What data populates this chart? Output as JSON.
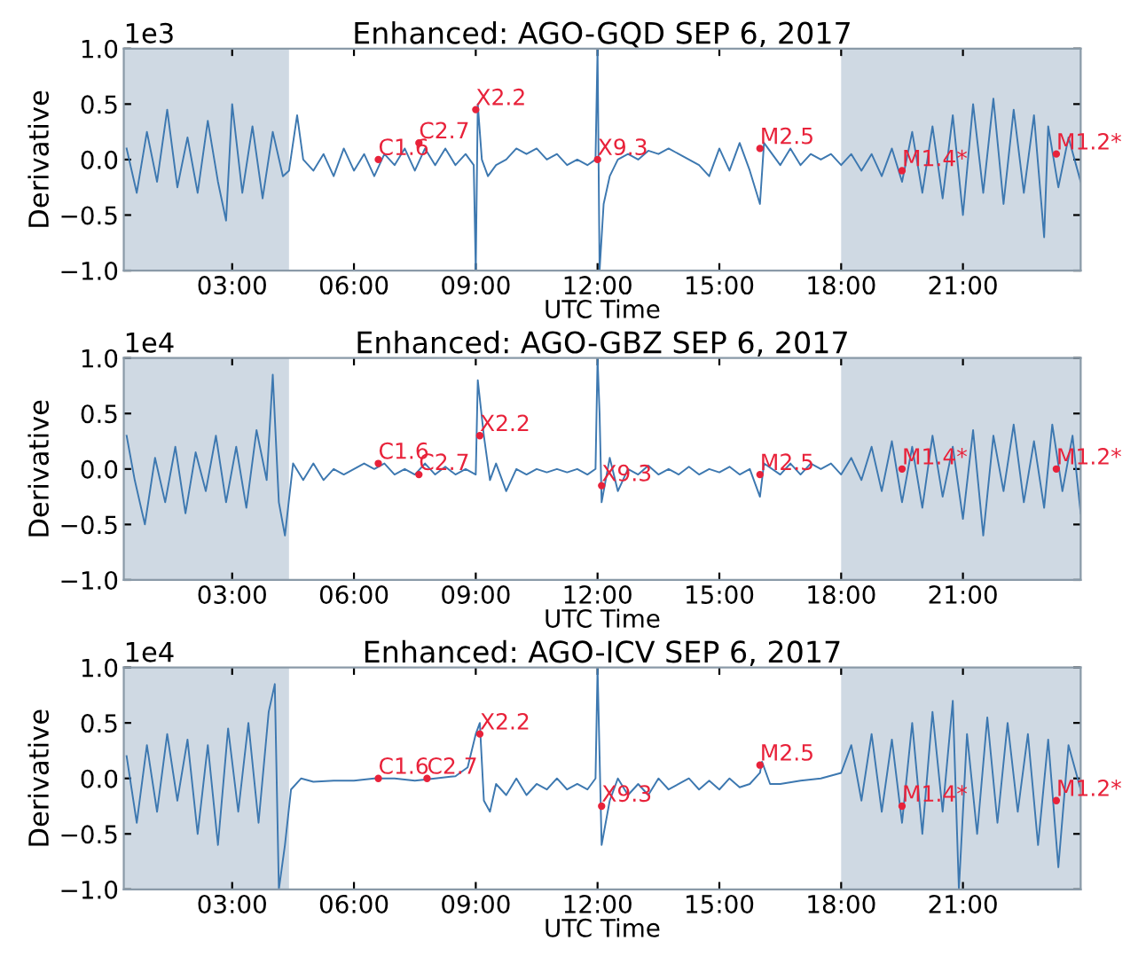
{
  "chart_data": [
    {
      "type": "line",
      "title": "Enhanced: AGO-GQD SEP 6, 2017",
      "xlabel": "UTC Time",
      "ylabel": "Derivative",
      "annotations": [
        "1e3",
        {
          "text": "C1.6",
          "x": 6.6,
          "y": 0.0
        },
        {
          "text": "C2.7",
          "x": 7.6,
          "y": 0.15
        },
        {
          "text": "X2.2",
          "x": 9.0,
          "y": 0.45
        },
        {
          "text": "X9.3",
          "x": 12.0,
          "y": 0.0
        },
        {
          "text": "M2.5",
          "x": 16.0,
          "y": 0.1
        },
        {
          "text": "M1.4*",
          "x": 19.5,
          "y": -0.1
        },
        {
          "text": "M1.2*",
          "x": 23.3,
          "y": 0.05
        }
      ],
      "xlim": [
        0.33,
        23.9
      ],
      "xticks": [
        {
          "value": 3,
          "label": "03:00"
        },
        {
          "value": 6,
          "label": "06:00"
        },
        {
          "value": 9,
          "label": "09:00"
        },
        {
          "value": 12,
          "label": "12:00"
        },
        {
          "value": 15,
          "label": "15:00"
        },
        {
          "value": 18,
          "label": "18:00"
        },
        {
          "value": 21,
          "label": "21:00"
        }
      ],
      "ylim": [
        -1.0,
        1.0
      ],
      "yticks": [
        {
          "value": -1.0,
          "label": "−1.0"
        },
        {
          "value": -0.5,
          "label": "−0.5"
        },
        {
          "value": 0.0,
          "label": "0.0"
        },
        {
          "value": 0.5,
          "label": "0.5"
        },
        {
          "value": 1.0,
          "label": "1.0"
        }
      ],
      "bands": [
        {
          "axis": "x",
          "from": 0.33,
          "to": 4.4,
          "color": "#cfd9e3"
        },
        {
          "axis": "x",
          "from": 18.0,
          "to": 23.9,
          "color": "#cfd9e3"
        }
      ],
      "grid": false,
      "legend": false,
      "series": [
        {
          "color": "#3d78b0",
          "x": [
            0.4,
            0.65,
            0.9,
            1.15,
            1.4,
            1.65,
            1.9,
            2.15,
            2.4,
            2.65,
            2.85,
            3.0,
            3.25,
            3.5,
            3.75,
            4.0,
            4.25,
            4.4,
            4.6,
            4.75,
            5.0,
            5.25,
            5.5,
            5.75,
            6.0,
            6.25,
            6.5,
            6.75,
            7.0,
            7.25,
            7.5,
            7.75,
            8.0,
            8.25,
            8.5,
            8.75,
            8.95,
            9.0,
            9.05,
            9.15,
            9.3,
            9.5,
            9.75,
            10.0,
            10.25,
            10.5,
            10.75,
            11.0,
            11.25,
            11.5,
            11.75,
            11.95,
            12.0,
            12.05,
            12.15,
            12.3,
            12.5,
            12.75,
            13.0,
            13.25,
            13.5,
            13.75,
            14.0,
            14.25,
            14.5,
            14.75,
            15.0,
            15.25,
            15.5,
            15.75,
            16.0,
            16.1,
            16.5,
            16.75,
            17.0,
            17.25,
            17.5,
            17.75,
            18.0,
            18.25,
            18.5,
            18.75,
            19.0,
            19.25,
            19.5,
            19.75,
            20.0,
            20.25,
            20.5,
            20.75,
            21.0,
            21.25,
            21.5,
            21.75,
            22.0,
            22.25,
            22.5,
            22.75,
            23.0,
            23.1,
            23.35,
            23.6,
            23.9
          ],
          "values": [
            0.1,
            -0.3,
            0.25,
            -0.2,
            0.45,
            -0.25,
            0.2,
            -0.3,
            0.35,
            -0.2,
            -0.55,
            0.5,
            -0.3,
            0.3,
            -0.35,
            0.25,
            -0.15,
            -0.1,
            0.4,
            0.0,
            -0.1,
            0.05,
            -0.15,
            0.1,
            -0.1,
            0.05,
            -0.15,
            0.05,
            -0.05,
            0.1,
            -0.1,
            0.1,
            -0.05,
            0.1,
            -0.05,
            0.05,
            -0.05,
            -1.0,
            0.5,
            0.0,
            -0.15,
            -0.05,
            0.0,
            0.1,
            0.05,
            0.1,
            0.0,
            0.05,
            -0.05,
            0.0,
            -0.05,
            0.0,
            1.0,
            -1.0,
            -0.4,
            -0.15,
            0.0,
            0.05,
            0.0,
            0.08,
            0.05,
            0.1,
            0.05,
            0.0,
            -0.05,
            -0.15,
            0.1,
            -0.1,
            0.15,
            -0.1,
            -0.4,
            0.15,
            -0.05,
            0.1,
            -0.05,
            0.05,
            0.0,
            0.05,
            -0.05,
            0.05,
            -0.1,
            0.05,
            -0.15,
            0.1,
            -0.2,
            0.25,
            -0.3,
            0.3,
            -0.35,
            0.4,
            -0.5,
            0.5,
            -0.3,
            0.55,
            -0.4,
            0.45,
            -0.3,
            0.4,
            -0.7,
            0.3,
            -0.25,
            0.2,
            -0.2
          ]
        }
      ]
    },
    {
      "type": "line",
      "title": "Enhanced: AGO-GBZ SEP 6, 2017",
      "xlabel": "UTC Time",
      "ylabel": "Derivative",
      "annotations": [
        "1e4",
        {
          "text": "C1.6",
          "x": 6.6,
          "y": 0.05
        },
        {
          "text": "C2.7",
          "x": 7.6,
          "y": -0.05
        },
        {
          "text": "X2.2",
          "x": 9.1,
          "y": 0.3
        },
        {
          "text": "X9.3",
          "x": 12.1,
          "y": -0.15
        },
        {
          "text": "M2.5",
          "x": 16.0,
          "y": -0.05
        },
        {
          "text": "M1.4*",
          "x": 19.5,
          "y": 0.0
        },
        {
          "text": "M1.2*",
          "x": 23.3,
          "y": 0.0
        }
      ],
      "xlim": [
        0.33,
        23.9
      ],
      "xticks": [
        {
          "value": 3,
          "label": "03:00"
        },
        {
          "value": 6,
          "label": "06:00"
        },
        {
          "value": 9,
          "label": "09:00"
        },
        {
          "value": 12,
          "label": "12:00"
        },
        {
          "value": 15,
          "label": "15:00"
        },
        {
          "value": 18,
          "label": "18:00"
        },
        {
          "value": 21,
          "label": "21:00"
        }
      ],
      "ylim": [
        -1.0,
        1.0
      ],
      "yticks": [
        {
          "value": -1.0,
          "label": "−1.0"
        },
        {
          "value": -0.5,
          "label": "−0.5"
        },
        {
          "value": 0.0,
          "label": "0.0"
        },
        {
          "value": 0.5,
          "label": "0.5"
        },
        {
          "value": 1.0,
          "label": "1.0"
        }
      ],
      "bands": [
        {
          "axis": "x",
          "from": 0.33,
          "to": 4.4,
          "color": "#cfd9e3"
        },
        {
          "axis": "x",
          "from": 18.0,
          "to": 23.9,
          "color": "#cfd9e3"
        }
      ],
      "grid": false,
      "legend": false,
      "series": [
        {
          "color": "#3d78b0",
          "x": [
            0.4,
            0.6,
            0.85,
            1.1,
            1.35,
            1.6,
            1.85,
            2.1,
            2.35,
            2.6,
            2.85,
            3.1,
            3.35,
            3.6,
            3.85,
            4.0,
            4.15,
            4.3,
            4.5,
            4.75,
            5.0,
            5.25,
            5.5,
            5.75,
            6.0,
            6.25,
            6.5,
            6.75,
            7.0,
            7.25,
            7.5,
            7.75,
            8.0,
            8.25,
            8.5,
            8.75,
            9.0,
            9.05,
            9.2,
            9.35,
            9.5,
            9.75,
            10.0,
            10.25,
            10.5,
            10.75,
            11.0,
            11.25,
            11.5,
            11.75,
            11.95,
            12.0,
            12.05,
            12.1,
            12.3,
            12.5,
            12.75,
            13.0,
            13.25,
            13.5,
            13.75,
            14.0,
            14.25,
            14.5,
            14.75,
            15.0,
            15.25,
            15.5,
            15.75,
            16.0,
            16.1,
            16.5,
            16.75,
            17.0,
            17.25,
            17.5,
            17.75,
            18.0,
            18.25,
            18.5,
            18.75,
            19.0,
            19.25,
            19.5,
            19.75,
            20.0,
            20.25,
            20.5,
            20.75,
            21.0,
            21.25,
            21.5,
            21.75,
            22.0,
            22.25,
            22.5,
            22.75,
            23.0,
            23.2,
            23.45,
            23.7,
            23.9
          ],
          "values": [
            0.3,
            -0.1,
            -0.5,
            0.1,
            -0.3,
            0.2,
            -0.4,
            0.15,
            -0.2,
            0.3,
            -0.3,
            0.2,
            -0.35,
            0.35,
            -0.1,
            0.85,
            -0.3,
            -0.6,
            0.05,
            -0.1,
            0.05,
            -0.1,
            0.0,
            -0.05,
            0.0,
            0.05,
            0.0,
            0.05,
            -0.05,
            0.0,
            -0.05,
            0.05,
            -0.05,
            0.02,
            -0.05,
            0.0,
            -0.05,
            0.8,
            0.3,
            -0.1,
            0.05,
            -0.2,
            0.0,
            -0.05,
            0.0,
            -0.03,
            0.0,
            -0.03,
            0.0,
            -0.05,
            0.0,
            1.0,
            0.5,
            -0.3,
            0.1,
            -0.2,
            0.0,
            -0.05,
            0.03,
            -0.05,
            0.0,
            -0.05,
            0.02,
            -0.05,
            0.0,
            -0.03,
            0.02,
            -0.05,
            0.0,
            -0.25,
            0.05,
            -0.05,
            0.05,
            -0.05,
            0.05,
            0.0,
            0.05,
            -0.05,
            0.1,
            -0.1,
            0.2,
            -0.2,
            0.25,
            -0.3,
            0.2,
            -0.35,
            0.3,
            -0.25,
            0.2,
            -0.45,
            0.35,
            -0.6,
            0.3,
            -0.2,
            0.4,
            -0.3,
            0.25,
            -0.35,
            0.4,
            -0.2,
            0.3,
            -0.4
          ]
        }
      ]
    },
    {
      "type": "line",
      "title": "Enhanced: AGO-ICV SEP 6, 2017",
      "xlabel": "UTC Time",
      "ylabel": "Derivative",
      "annotations": [
        "1e4",
        {
          "text": "C1.6",
          "x": 6.6,
          "y": 0.0
        },
        {
          "text": "C2.7",
          "x": 7.8,
          "y": 0.0
        },
        {
          "text": "X2.2",
          "x": 9.1,
          "y": 0.4
        },
        {
          "text": "X9.3",
          "x": 12.1,
          "y": -0.25
        },
        {
          "text": "M2.5",
          "x": 16.0,
          "y": 0.12
        },
        {
          "text": "M1.4*",
          "x": 19.5,
          "y": -0.25
        },
        {
          "text": "M1.2*",
          "x": 23.3,
          "y": -0.2
        }
      ],
      "xlim": [
        0.33,
        23.9
      ],
      "xticks": [
        {
          "value": 3,
          "label": "03:00"
        },
        {
          "value": 6,
          "label": "06:00"
        },
        {
          "value": 9,
          "label": "09:00"
        },
        {
          "value": 12,
          "label": "12:00"
        },
        {
          "value": 15,
          "label": "15:00"
        },
        {
          "value": 18,
          "label": "18:00"
        },
        {
          "value": 21,
          "label": "21:00"
        }
      ],
      "ylim": [
        -1.0,
        1.0
      ],
      "yticks": [
        {
          "value": -1.0,
          "label": "−1.0"
        },
        {
          "value": -0.5,
          "label": "−0.5"
        },
        {
          "value": 0.0,
          "label": "0.0"
        },
        {
          "value": 0.5,
          "label": "0.5"
        },
        {
          "value": 1.0,
          "label": "1.0"
        }
      ],
      "bands": [
        {
          "axis": "x",
          "from": 0.33,
          "to": 4.4,
          "color": "#cfd9e3"
        },
        {
          "axis": "x",
          "from": 18.0,
          "to": 23.9,
          "color": "#cfd9e3"
        }
      ],
      "grid": false,
      "legend": false,
      "series": [
        {
          "color": "#3d78b0",
          "x": [
            0.4,
            0.65,
            0.9,
            1.15,
            1.4,
            1.65,
            1.9,
            2.15,
            2.4,
            2.65,
            2.9,
            3.15,
            3.4,
            3.65,
            3.9,
            4.05,
            4.15,
            4.3,
            4.45,
            4.7,
            5.0,
            5.5,
            6.0,
            6.5,
            7.0,
            7.5,
            8.0,
            8.5,
            8.8,
            9.0,
            9.1,
            9.2,
            9.35,
            9.5,
            9.75,
            10.0,
            10.25,
            10.5,
            10.75,
            11.0,
            11.25,
            11.5,
            11.75,
            11.95,
            12.0,
            12.05,
            12.1,
            12.3,
            12.5,
            12.75,
            13.0,
            13.25,
            13.5,
            13.75,
            14.0,
            14.25,
            14.5,
            14.75,
            15.0,
            15.25,
            15.5,
            15.75,
            16.0,
            16.05,
            16.25,
            16.5,
            17.0,
            17.5,
            18.0,
            18.25,
            18.5,
            18.75,
            19.0,
            19.25,
            19.5,
            19.75,
            20.0,
            20.25,
            20.5,
            20.75,
            20.9,
            21.1,
            21.35,
            21.6,
            21.85,
            22.1,
            22.35,
            22.6,
            22.85,
            23.1,
            23.35,
            23.6,
            23.9
          ],
          "values": [
            0.2,
            -0.4,
            0.3,
            -0.3,
            0.4,
            -0.2,
            0.35,
            -0.5,
            0.3,
            -0.6,
            0.45,
            -0.3,
            0.5,
            -0.4,
            0.6,
            0.85,
            -1.0,
            -0.6,
            -0.1,
            0.0,
            -0.03,
            -0.02,
            -0.02,
            0.0,
            0.0,
            -0.02,
            0.0,
            0.02,
            0.1,
            0.4,
            0.5,
            -0.2,
            -0.3,
            -0.05,
            -0.15,
            0.0,
            -0.15,
            -0.05,
            -0.1,
            0.0,
            -0.1,
            -0.05,
            -0.1,
            0.0,
            1.0,
            0.2,
            -0.6,
            -0.2,
            0.0,
            -0.15,
            -0.05,
            -0.15,
            0.0,
            -0.1,
            -0.05,
            0.0,
            -0.1,
            -0.02,
            -0.1,
            0.0,
            -0.08,
            -0.05,
            0.05,
            0.15,
            -0.05,
            -0.05,
            -0.02,
            0.0,
            0.05,
            0.3,
            -0.2,
            0.4,
            -0.3,
            0.35,
            -0.4,
            0.5,
            -0.5,
            0.6,
            -0.3,
            0.7,
            -1.0,
            0.4,
            -0.5,
            0.55,
            -0.4,
            0.5,
            -0.3,
            0.4,
            -0.6,
            0.35,
            -0.8,
            0.3,
            -0.1
          ]
        }
      ]
    }
  ]
}
